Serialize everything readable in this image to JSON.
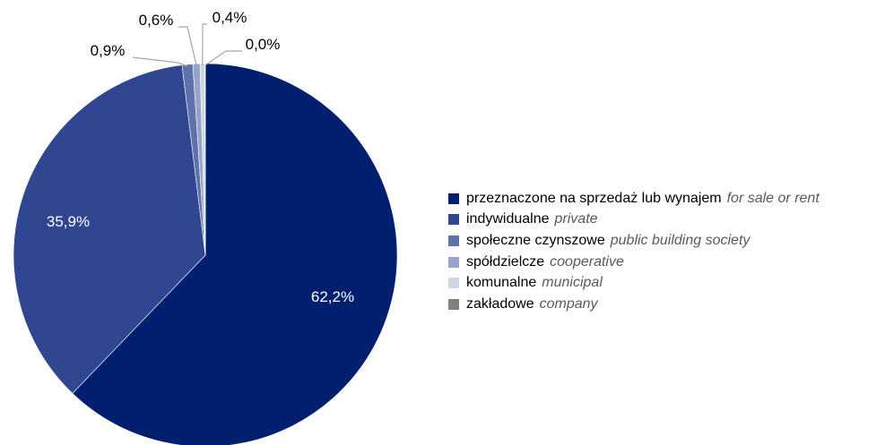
{
  "chart_data": {
    "type": "pie",
    "slices": [
      {
        "label": "przeznaczone na sprzedaż lub wynajem",
        "label_en": "for sale or rent",
        "value": 62.2,
        "value_label": "62,2%",
        "color": "#001f6e",
        "label_color": "#ffffff"
      },
      {
        "label": "indywidualne",
        "label_en": "private",
        "value": 35.9,
        "value_label": "35,9%",
        "color": "#304690",
        "label_color": "#ffffff"
      },
      {
        "label": "społeczne czynszowe",
        "label_en": "public building society",
        "value": 0.9,
        "value_label": "0,9%",
        "color": "#5f72ac",
        "label_color": "#000000"
      },
      {
        "label": "spółdzielcze",
        "label_en": "cooperative",
        "value": 0.6,
        "value_label": "0,6%",
        "color": "#97a4c9",
        "label_color": "#000000"
      },
      {
        "label": "komunalne",
        "label_en": "municipal",
        "value": 0.4,
        "value_label": "0,4%",
        "color": "#d0d6e8",
        "label_color": "#000000"
      },
      {
        "label": "zakładowe",
        "label_en": "company",
        "value": 0.04,
        "value_label": "0,0%",
        "color": "#808080",
        "label_color": "#000000"
      }
    ],
    "legend_position": "right"
  }
}
